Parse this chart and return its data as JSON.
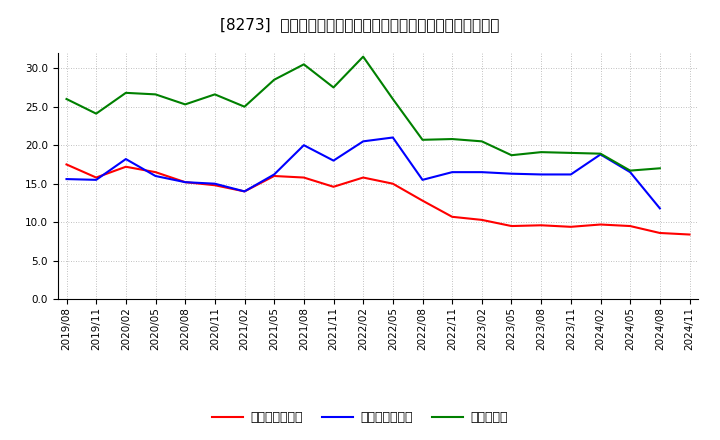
{
  "title": "[8273]  売上債権回転率、買入債務回転率、在庫回転率の推移",
  "x_labels": [
    "2019/08",
    "2019/11",
    "2020/02",
    "2020/05",
    "2020/08",
    "2020/11",
    "2021/02",
    "2021/05",
    "2021/08",
    "2021/11",
    "2022/02",
    "2022/05",
    "2022/08",
    "2022/11",
    "2023/02",
    "2023/05",
    "2023/08",
    "2023/11",
    "2024/02",
    "2024/05",
    "2024/08",
    "2024/11"
  ],
  "red_series": [
    17.5,
    15.8,
    17.2,
    16.5,
    15.2,
    14.8,
    14.0,
    16.0,
    15.8,
    14.6,
    15.8,
    15.0,
    12.8,
    10.7,
    10.3,
    9.5,
    9.6,
    9.4,
    9.7,
    9.5,
    8.6,
    8.4
  ],
  "blue_series": [
    15.6,
    15.5,
    18.2,
    16.0,
    15.2,
    15.0,
    14.0,
    16.2,
    20.0,
    18.0,
    20.5,
    21.0,
    15.5,
    16.5,
    16.5,
    16.3,
    16.2,
    16.2,
    18.8,
    16.5,
    11.8,
    null
  ],
  "green_series": [
    26.0,
    24.1,
    26.8,
    26.6,
    25.3,
    26.6,
    25.0,
    28.5,
    30.5,
    27.5,
    31.5,
    26.0,
    20.7,
    20.8,
    20.5,
    18.7,
    19.1,
    19.0,
    18.9,
    16.7,
    17.0,
    null
  ],
  "red_color": "#ff0000",
  "blue_color": "#0000ff",
  "green_color": "#008000",
  "bg_color": "#ffffff",
  "grid_color": "#999999",
  "ylim": [
    0,
    32
  ],
  "yticks": [
    0.0,
    5.0,
    10.0,
    15.0,
    20.0,
    25.0,
    30.0
  ],
  "legend_labels": [
    "売上債権回転率",
    "買入債務回転率",
    "在庫回転率"
  ],
  "title_fontsize": 11,
  "tick_fontsize": 7.5,
  "legend_fontsize": 9
}
